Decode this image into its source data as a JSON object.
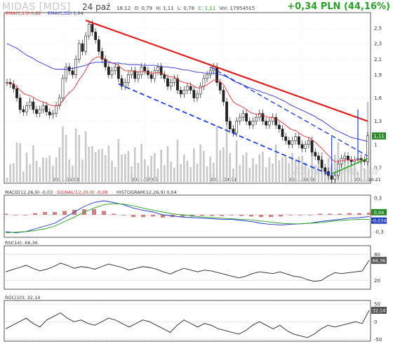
{
  "header": {
    "title": "MIDAS [MDS]",
    "date": "24 paź",
    "time": "18:12",
    "open": "O: 0,79",
    "high": "H: 1,11",
    "low": "L: 0,78",
    "close": "C: 1,11",
    "volume": "Vol: 17954515",
    "change": "+0,34 PLN (44,16%)"
  },
  "colors": {
    "up": "#2aa02a",
    "ema13": "#e03030",
    "ema55": "#3030d0",
    "red_line": "#e02020",
    "blue_dash": "#2040e0",
    "green_line": "#22aa22",
    "volume": "#c8c8c8",
    "macd": "#2030d0",
    "signal": "#20a020",
    "hist": "#d08080"
  },
  "chart_data": [
    {
      "type": "candlestick",
      "legend": [
        "EMA(C,13) 0,82",
        "EMA(C,55) 1,04"
      ],
      "x_ticks": [
        "2011-06-01",
        "2011-07-07",
        "2011-08-11",
        "2011-09-16",
        "2011-10-21"
      ],
      "y_ticks": [
        "0,7",
        "1",
        "1,3",
        "1,6",
        "1,9",
        "2,1",
        "2,3",
        "2,5"
      ],
      "y_tick_values": [
        0.7,
        1.0,
        1.3,
        1.6,
        1.9,
        2.1,
        2.3,
        2.5
      ],
      "last_price_label": "1,11",
      "watermark": "AT.Notowania",
      "close": [
        1.8,
        1.78,
        1.72,
        1.6,
        1.45,
        1.42,
        1.5,
        1.55,
        1.45,
        1.4,
        1.45,
        1.5,
        1.42,
        1.38,
        1.4,
        1.5,
        1.6,
        1.85,
        2.0,
        1.95,
        1.9,
        2.1,
        2.3,
        2.2,
        2.4,
        2.55,
        2.45,
        2.35,
        2.2,
        2.1,
        2.0,
        1.9,
        1.95,
        2.0,
        1.85,
        1.75,
        1.8,
        1.9,
        1.95,
        1.85,
        1.9,
        2.0,
        1.95,
        1.9,
        1.85,
        1.95,
        2.0,
        1.9,
        1.85,
        1.75,
        1.8,
        1.85,
        1.7,
        1.65,
        1.7,
        1.75,
        1.7,
        1.6,
        1.65,
        1.75,
        1.85,
        1.9,
        1.95,
        2.0,
        1.8,
        1.7,
        1.55,
        1.3,
        1.2,
        1.15,
        1.3,
        1.35,
        1.4,
        1.3,
        1.25,
        1.3,
        1.35,
        1.4,
        1.3,
        1.25,
        1.3,
        1.35,
        1.25,
        1.2,
        1.1,
        1.05,
        1.0,
        1.05,
        1.1,
        1.0,
        0.95,
        1.0,
        1.05,
        0.9,
        0.85,
        0.8,
        0.7,
        0.65,
        0.6,
        0.55,
        0.6,
        0.75,
        0.82,
        0.85,
        0.8,
        0.78,
        0.8,
        0.82,
        0.8,
        0.78,
        1.11
      ],
      "ema13": [
        1.8,
        1.79,
        1.77,
        1.74,
        1.7,
        1.66,
        1.64,
        1.63,
        1.61,
        1.58,
        1.56,
        1.55,
        1.53,
        1.51,
        1.5,
        1.5,
        1.51,
        1.56,
        1.62,
        1.67,
        1.7,
        1.76,
        1.84,
        1.89,
        1.96,
        2.04,
        2.09,
        2.12,
        2.13,
        2.12,
        2.1,
        2.07,
        2.05,
        2.04,
        2.02,
        1.98,
        1.95,
        1.95,
        1.95,
        1.94,
        1.93,
        1.94,
        1.94,
        1.93,
        1.92,
        1.92,
        1.93,
        1.92,
        1.91,
        1.88,
        1.87,
        1.87,
        1.84,
        1.81,
        1.8,
        1.79,
        1.78,
        1.75,
        1.73,
        1.73,
        1.75,
        1.77,
        1.8,
        1.83,
        1.83,
        1.81,
        1.77,
        1.7,
        1.62,
        1.55,
        1.52,
        1.5,
        1.48,
        1.45,
        1.42,
        1.4,
        1.39,
        1.39,
        1.38,
        1.36,
        1.35,
        1.35,
        1.33,
        1.31,
        1.28,
        1.25,
        1.21,
        1.19,
        1.18,
        1.15,
        1.12,
        1.1,
        1.09,
        1.06,
        1.03,
        0.99,
        0.95,
        0.9,
        0.86,
        0.81,
        0.78,
        0.78,
        0.79,
        0.8,
        0.8,
        0.8,
        0.8,
        0.8,
        0.8,
        0.8,
        0.82
      ],
      "ema55": [
        2.3,
        2.28,
        2.26,
        2.24,
        2.21,
        2.18,
        2.15,
        2.13,
        2.11,
        2.08,
        2.06,
        2.04,
        2.02,
        2.0,
        1.98,
        1.97,
        1.97,
        1.97,
        1.97,
        1.98,
        1.98,
        1.99,
        2.0,
        2.01,
        2.02,
        2.04,
        2.05,
        2.06,
        2.06,
        2.06,
        2.06,
        2.06,
        2.05,
        2.05,
        2.05,
        2.04,
        2.04,
        2.03,
        2.03,
        2.03,
        2.03,
        2.02,
        2.02,
        2.02,
        2.02,
        2.02,
        2.01,
        2.01,
        2.0,
        2.0,
        1.99,
        1.99,
        1.98,
        1.97,
        1.96,
        1.96,
        1.95,
        1.94,
        1.93,
        1.93,
        1.92,
        1.92,
        1.92,
        1.92,
        1.91,
        1.9,
        1.89,
        1.87,
        1.85,
        1.82,
        1.8,
        1.79,
        1.77,
        1.75,
        1.73,
        1.72,
        1.7,
        1.69,
        1.67,
        1.66,
        1.64,
        1.63,
        1.61,
        1.59,
        1.57,
        1.55,
        1.52,
        1.5,
        1.48,
        1.46,
        1.44,
        1.42,
        1.4,
        1.38,
        1.36,
        1.33,
        1.31,
        1.28,
        1.25,
        1.22,
        1.19,
        1.17,
        1.15,
        1.13,
        1.11,
        1.09,
        1.08,
        1.07,
        1.06,
        1.05,
        1.04
      ]
    },
    {
      "type": "line",
      "legend": [
        "MACD(12,26,9) -0,03",
        "SIGNAL(12,26,9) -0,08",
        "HISTOGRAM(12,26,9) 0,04"
      ],
      "y_ticks": [
        "0,3",
        "-0,3"
      ],
      "y_tick_values": [
        0.3,
        -0.3
      ],
      "labels": [
        "0,04",
        "-0,034"
      ],
      "macd": [
        -0.3,
        -0.32,
        -0.3,
        -0.25,
        -0.2,
        -0.15,
        -0.05,
        0.05,
        0.15,
        0.22,
        0.25,
        0.22,
        0.18,
        0.12,
        0.08,
        0.05,
        0.0,
        -0.02,
        -0.04,
        -0.05,
        -0.06,
        -0.07,
        -0.08,
        -0.08,
        -0.1,
        -0.12,
        -0.15,
        -0.17,
        -0.18,
        -0.17,
        -0.16,
        -0.15,
        -0.12,
        -0.1,
        -0.08,
        -0.06,
        -0.05,
        -0.03
      ],
      "signal": [
        -0.32,
        -0.31,
        -0.3,
        -0.28,
        -0.25,
        -0.2,
        -0.12,
        -0.04,
        0.05,
        0.12,
        0.18,
        0.2,
        0.19,
        0.16,
        0.12,
        0.08,
        0.05,
        0.02,
        0.0,
        -0.02,
        -0.04,
        -0.05,
        -0.06,
        -0.07,
        -0.08,
        -0.09,
        -0.11,
        -0.13,
        -0.15,
        -0.16,
        -0.16,
        -0.15,
        -0.14,
        -0.12,
        -0.1,
        -0.09,
        -0.08,
        -0.08
      ],
      "histogram": [
        0.02,
        -0.01,
        0.0,
        0.03,
        0.05,
        0.05,
        0.07,
        0.09,
        0.1,
        0.1,
        0.07,
        0.02,
        -0.01,
        -0.04,
        -0.04,
        -0.03,
        -0.05,
        -0.04,
        -0.04,
        -0.03,
        -0.02,
        -0.02,
        -0.02,
        -0.01,
        -0.02,
        -0.03,
        -0.04,
        -0.04,
        -0.03,
        -0.01,
        0.0,
        0.0,
        0.02,
        0.02,
        0.02,
        0.03,
        0.03,
        0.04
      ]
    },
    {
      "type": "line",
      "legend": [
        "RSI(14): 66,36"
      ],
      "y_ticks": [
        "80",
        "20"
      ],
      "y_tick_values": [
        80,
        20
      ],
      "labels": [
        "66,36"
      ],
      "rsi": [
        40,
        45,
        50,
        55,
        48,
        42,
        46,
        52,
        60,
        55,
        48,
        52,
        50,
        46,
        52,
        58,
        54,
        50,
        44,
        48,
        52,
        50,
        46,
        40,
        35,
        42,
        48,
        44,
        40,
        44,
        42,
        38,
        34,
        30,
        26,
        30,
        36,
        40,
        38,
        36,
        40,
        35,
        30,
        28,
        22,
        18,
        20,
        30,
        38,
        36,
        38,
        40,
        42,
        66.36
      ]
    },
    {
      "type": "line",
      "legend": [
        "ROC(10): 32,14"
      ],
      "y_ticks": [
        "50",
        "0",
        "-50"
      ],
      "y_tick_values": [
        50,
        0,
        -50
      ],
      "labels": [
        "32,14"
      ],
      "roc": [
        -20,
        -10,
        0,
        10,
        -5,
        -15,
        5,
        15,
        25,
        10,
        0,
        5,
        -5,
        -10,
        0,
        10,
        5,
        -5,
        -15,
        -5,
        5,
        0,
        -10,
        -20,
        -30,
        -10,
        5,
        -5,
        -15,
        -5,
        -10,
        -20,
        -25,
        -30,
        -35,
        -25,
        -10,
        0,
        -10,
        -20,
        -10,
        -25,
        -35,
        -40,
        -45,
        -35,
        -20,
        -10,
        -15,
        -10,
        -5,
        0,
        -5,
        32.14
      ]
    }
  ]
}
